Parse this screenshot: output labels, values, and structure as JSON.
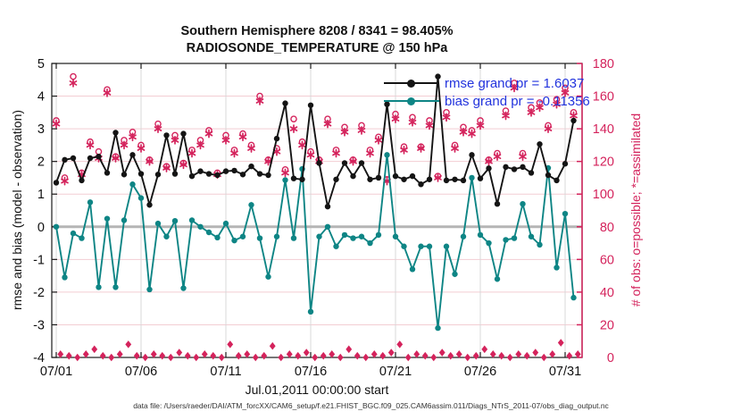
{
  "caption": "data file: /Users/raeder/DAI/ATM_forcXX/CAM6_setup/f.e21.FHIST_BGC.f09_025.CAM6assim.011/Diags_NTrS_2011-07/obs_diag_output.nc",
  "chart_data": {
    "type": "line",
    "title": "Southern Hemisphere 8208 / 8341 = 98.405%",
    "subtitle": "RADIOSONDE_TEMPERATURE @ 150 hPa",
    "xlabel": "Jul.01,2011 00:00:00 start",
    "ylabel_left": "rmse and bias (model - observation)",
    "ylabel_right": "# of obs: o=possible; *=assimilated",
    "legend_position": "upper-right-inside",
    "grid": true,
    "x_ticks": {
      "days": [
        1,
        6,
        11,
        16,
        21,
        26,
        31
      ],
      "labels": [
        "07/01",
        "07/06",
        "07/11",
        "07/16",
        "07/21",
        "07/26",
        "07/31"
      ]
    },
    "y_left": {
      "min": -4,
      "max": 5,
      "ticks": [
        -4,
        -3,
        -2,
        -1,
        0,
        1,
        2,
        3,
        4,
        5
      ]
    },
    "y_right": {
      "min": 0,
      "max": 180,
      "ticks": [
        0,
        20,
        40,
        60,
        80,
        100,
        120,
        140,
        160,
        180
      ]
    },
    "x_days": [
      1.0,
      1.5,
      2.0,
      2.5,
      3.0,
      3.5,
      4.0,
      4.5,
      5.0,
      5.5,
      6.0,
      6.5,
      7.0,
      7.5,
      8.0,
      8.5,
      9.0,
      9.5,
      10.0,
      10.5,
      11.0,
      11.5,
      12.0,
      12.5,
      13.0,
      13.5,
      14.0,
      14.5,
      15.0,
      15.5,
      16.0,
      16.5,
      17.0,
      17.5,
      18.0,
      18.5,
      19.0,
      19.5,
      20.0,
      20.5,
      21.0,
      21.5,
      22.0,
      22.5,
      23.0,
      23.5,
      24.0,
      24.5,
      25.0,
      25.5,
      26.0,
      26.5,
      27.0,
      27.5,
      28.0,
      28.5,
      29.0,
      29.5,
      30.0,
      30.5,
      31.0,
      31.5
    ],
    "series": [
      {
        "name": "rmse",
        "legend_label": "rmse grand pr = 1.6037",
        "color": "#141414",
        "values": [
          1.35,
          2.05,
          2.1,
          1.42,
          2.1,
          2.15,
          1.65,
          2.88,
          1.6,
          2.2,
          1.62,
          0.67,
          1.6,
          2.8,
          1.62,
          2.85,
          1.55,
          1.7,
          1.62,
          1.58,
          1.7,
          1.72,
          1.6,
          1.85,
          1.62,
          1.58,
          2.7,
          3.78,
          1.48,
          1.45,
          3.72,
          1.95,
          0.62,
          1.45,
          1.95,
          1.55,
          1.95,
          1.45,
          1.5,
          3.75,
          1.55,
          1.45,
          1.55,
          1.3,
          1.45,
          4.6,
          1.42,
          1.45,
          1.42,
          2.2,
          1.48,
          1.79,
          0.7,
          1.83,
          1.76,
          1.83,
          1.65,
          2.53,
          1.58,
          1.42,
          1.93,
          3.25
        ]
      },
      {
        "name": "bias",
        "legend_label": "bias grand pr = -0.11356",
        "color": "#0e8585",
        "values": [
          0.0,
          -1.55,
          -0.2,
          -0.35,
          0.75,
          -1.85,
          0.25,
          -1.85,
          0.2,
          1.3,
          0.88,
          -1.92,
          0.1,
          -0.3,
          0.18,
          -1.88,
          0.2,
          0.0,
          -0.17,
          -0.33,
          0.1,
          -0.42,
          -0.3,
          0.67,
          -0.35,
          -1.53,
          -0.3,
          1.43,
          -0.35,
          1.77,
          -2.6,
          -0.3,
          0.0,
          -0.6,
          -0.25,
          -0.35,
          -0.3,
          -0.5,
          -0.25,
          2.2,
          -0.3,
          -0.6,
          -1.3,
          -0.6,
          -0.6,
          -3.1,
          -0.6,
          -1.45,
          -0.3,
          1.5,
          -0.25,
          -0.5,
          -1.6,
          -0.4,
          -0.35,
          0.7,
          -0.3,
          -0.55,
          1.8,
          -1.25,
          0.4,
          -2.17
        ]
      }
    ],
    "obs_counts": {
      "color": "#d4235c",
      "possible": [
        145,
        110,
        172,
        113,
        132,
        126,
        164,
        123,
        133,
        138,
        130,
        121,
        143,
        117,
        136,
        119,
        127,
        133,
        139,
        113,
        136,
        127,
        137,
        130,
        160,
        121,
        128,
        115,
        146,
        132,
        126,
        121,
        146,
        127,
        141,
        121,
        142,
        127,
        135,
        109,
        149,
        129,
        147,
        129,
        145,
        111,
        150,
        130,
        141,
        139,
        145,
        121,
        125,
        151,
        168,
        125,
        153,
        156,
        142,
        158,
        165,
        150
      ],
      "assimilated": [
        143,
        108,
        168,
        112,
        130,
        122,
        162,
        122,
        130,
        135,
        128,
        120,
        140,
        116,
        133,
        118,
        125,
        130,
        137,
        112,
        133,
        125,
        135,
        128,
        157,
        120,
        126,
        113,
        140,
        130,
        124,
        120,
        143,
        125,
        138,
        120,
        139,
        125,
        133,
        108,
        146,
        127,
        144,
        128,
        142,
        110,
        147,
        128,
        138,
        137,
        142,
        120,
        123,
        148,
        165,
        123,
        150,
        153,
        140,
        155,
        162,
        148
      ],
      "offtime_days": [
        1.25,
        1.75,
        2.25,
        2.75,
        3.25,
        3.75,
        4.25,
        4.75,
        5.25,
        5.75,
        6.25,
        6.75,
        7.25,
        7.75,
        8.25,
        8.75,
        9.25,
        9.75,
        10.25,
        10.75,
        11.25,
        11.75,
        12.25,
        12.75,
        13.25,
        13.75,
        14.25,
        14.75,
        15.25,
        15.75,
        16.25,
        16.75,
        17.25,
        17.75,
        18.25,
        18.75,
        19.25,
        19.75,
        20.25,
        20.75,
        21.25,
        21.75,
        22.25,
        22.75,
        23.25,
        23.75,
        24.25,
        24.75,
        25.25,
        25.75,
        26.25,
        26.75,
        27.25,
        27.75,
        28.25,
        28.75,
        29.25,
        29.75,
        30.25,
        30.75,
        31.25,
        31.75
      ],
      "offtime_counts": [
        2,
        1,
        0,
        2,
        5,
        1,
        0,
        2,
        8,
        1,
        0,
        2,
        1,
        0,
        3,
        1,
        0,
        2,
        1,
        0,
        8,
        1,
        2,
        0,
        1,
        7,
        0,
        2,
        1,
        3,
        0,
        1,
        2,
        0,
        5,
        1,
        0,
        2,
        1,
        3,
        8,
        0,
        2,
        1,
        0,
        3,
        1,
        2,
        0,
        1,
        5,
        2,
        1,
        0,
        2,
        1,
        3,
        0,
        2,
        9,
        1,
        2
      ]
    },
    "colors": {
      "legend_text": "#2233dd",
      "h_grid": "#f3cdd3",
      "v_grid": "#d8d8d8",
      "zero_line": "#b5b5b5",
      "axis_box": "#1a1a1a",
      "right_axis": "#d4235c"
    }
  }
}
